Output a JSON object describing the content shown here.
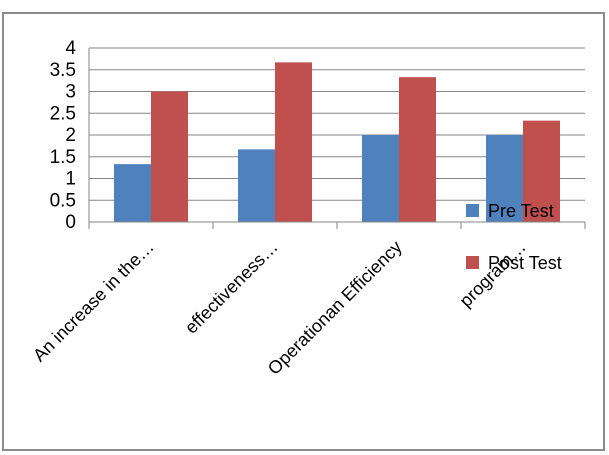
{
  "chart_data": {
    "type": "bar",
    "title": "",
    "xlabel": "",
    "ylabel": "",
    "ylim": [
      0,
      4
    ],
    "yticks": [
      "0",
      "0.5",
      "1",
      "1.5",
      "2",
      "2.5",
      "3",
      "3.5",
      "4"
    ],
    "grid": true,
    "legend_position": "right",
    "categories": [
      "An increase in the…",
      "effectiveness…",
      "Operationan Efficiency",
      "program…"
    ],
    "series": [
      {
        "name": "Pre Test",
        "color": "#4f81bd",
        "values": [
          1.33,
          1.67,
          2.0,
          2.0
        ]
      },
      {
        "name": "Post Test",
        "color": "#c0504d",
        "values": [
          3.0,
          3.67,
          3.33,
          2.33
        ]
      }
    ]
  }
}
